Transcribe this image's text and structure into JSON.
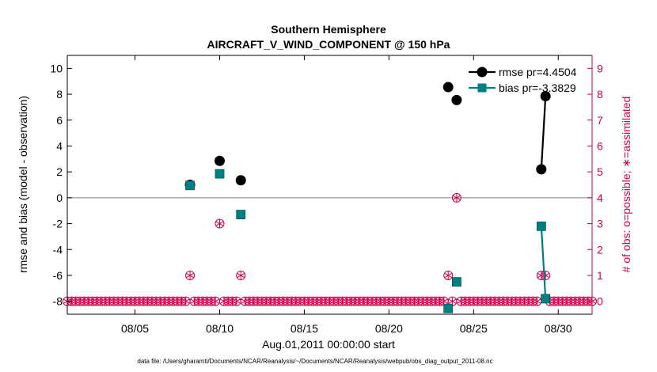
{
  "chart_data": {
    "type": "scatter",
    "title": "Southern Hemisphere",
    "subtitle": "AIRCRAFT_V_WIND_COMPONENT @ 150 hPa",
    "xlabel": "Aug.01,2011 00:00:00 start",
    "ylabel": "rmse and bias (model - observation)",
    "ylabel_right": "# of obs: o=possible; ∗=assimilated",
    "footnote": "data file: /Users/gharamti/Documents/NCAR/Reanalysis/~/Documents/NCAR/Reanalysis/webpub/obs_diag_output_2011-08.nc",
    "xlim": [
      1,
      32
    ],
    "ylim": [
      -9,
      11
    ],
    "ylim_right": [
      -0.5,
      9.5
    ],
    "x_ticks": [
      5,
      10,
      15,
      20,
      25,
      30
    ],
    "x_tick_labels": [
      "08/05",
      "08/10",
      "08/15",
      "08/20",
      "08/25",
      "08/30"
    ],
    "y_ticks": [
      -8,
      -6,
      -4,
      -2,
      0,
      2,
      4,
      6,
      8,
      10
    ],
    "y_tick_labels": [
      "-8",
      "-6",
      "-4",
      "-2",
      "0",
      "2",
      "4",
      "6",
      "8",
      "10"
    ],
    "y_ticks_right": [
      0,
      1,
      2,
      3,
      4,
      5,
      6,
      7,
      8,
      9
    ],
    "y_tick_labels_right": [
      "0",
      "1",
      "2",
      "3",
      "4",
      "5",
      "6",
      "7",
      "8",
      "9"
    ],
    "legend": {
      "placement": "top-right",
      "entries": [
        "rmse pr=4.4504",
        "bias pr=-3.3829"
      ]
    },
    "series": [
      {
        "name": "rmse",
        "color": "#000000",
        "points": [
          [
            8.25,
            1.0
          ],
          [
            10.0,
            2.85
          ],
          [
            11.25,
            1.35
          ],
          [
            23.5,
            8.55
          ],
          [
            24.0,
            7.55
          ],
          [
            29.0,
            2.2
          ],
          [
            29.25,
            7.85
          ]
        ],
        "segments": [
          [
            5,
            6
          ]
        ]
      },
      {
        "name": "bias",
        "color": "#008080",
        "points": [
          [
            8.25,
            0.95
          ],
          [
            10.0,
            1.85
          ],
          [
            11.25,
            -1.3
          ],
          [
            23.5,
            -8.55
          ],
          [
            24.0,
            -6.5
          ],
          [
            29.0,
            -2.2
          ],
          [
            29.25,
            -7.8
          ]
        ],
        "segments": [
          [
            5,
            6
          ]
        ]
      }
    ],
    "obs_counts": {
      "color": "#d0004c",
      "x_start": 1.0,
      "x_step": 0.25,
      "x_end": 32.0,
      "nonzero": [
        {
          "x": 8.25,
          "possible": 1,
          "assimilated": 1
        },
        {
          "x": 10.0,
          "possible": 3,
          "assimilated": 3
        },
        {
          "x": 11.25,
          "possible": 1,
          "assimilated": 1
        },
        {
          "x": 23.5,
          "possible": 1,
          "assimilated": 1
        },
        {
          "x": 24.0,
          "possible": 4,
          "assimilated": 4
        },
        {
          "x": 29.0,
          "possible": 1,
          "assimilated": 1
        },
        {
          "x": 29.25,
          "possible": 1,
          "assimilated": 1
        }
      ]
    },
    "zero_line_color": "#999999",
    "right_axis_color": "#d0004c"
  }
}
